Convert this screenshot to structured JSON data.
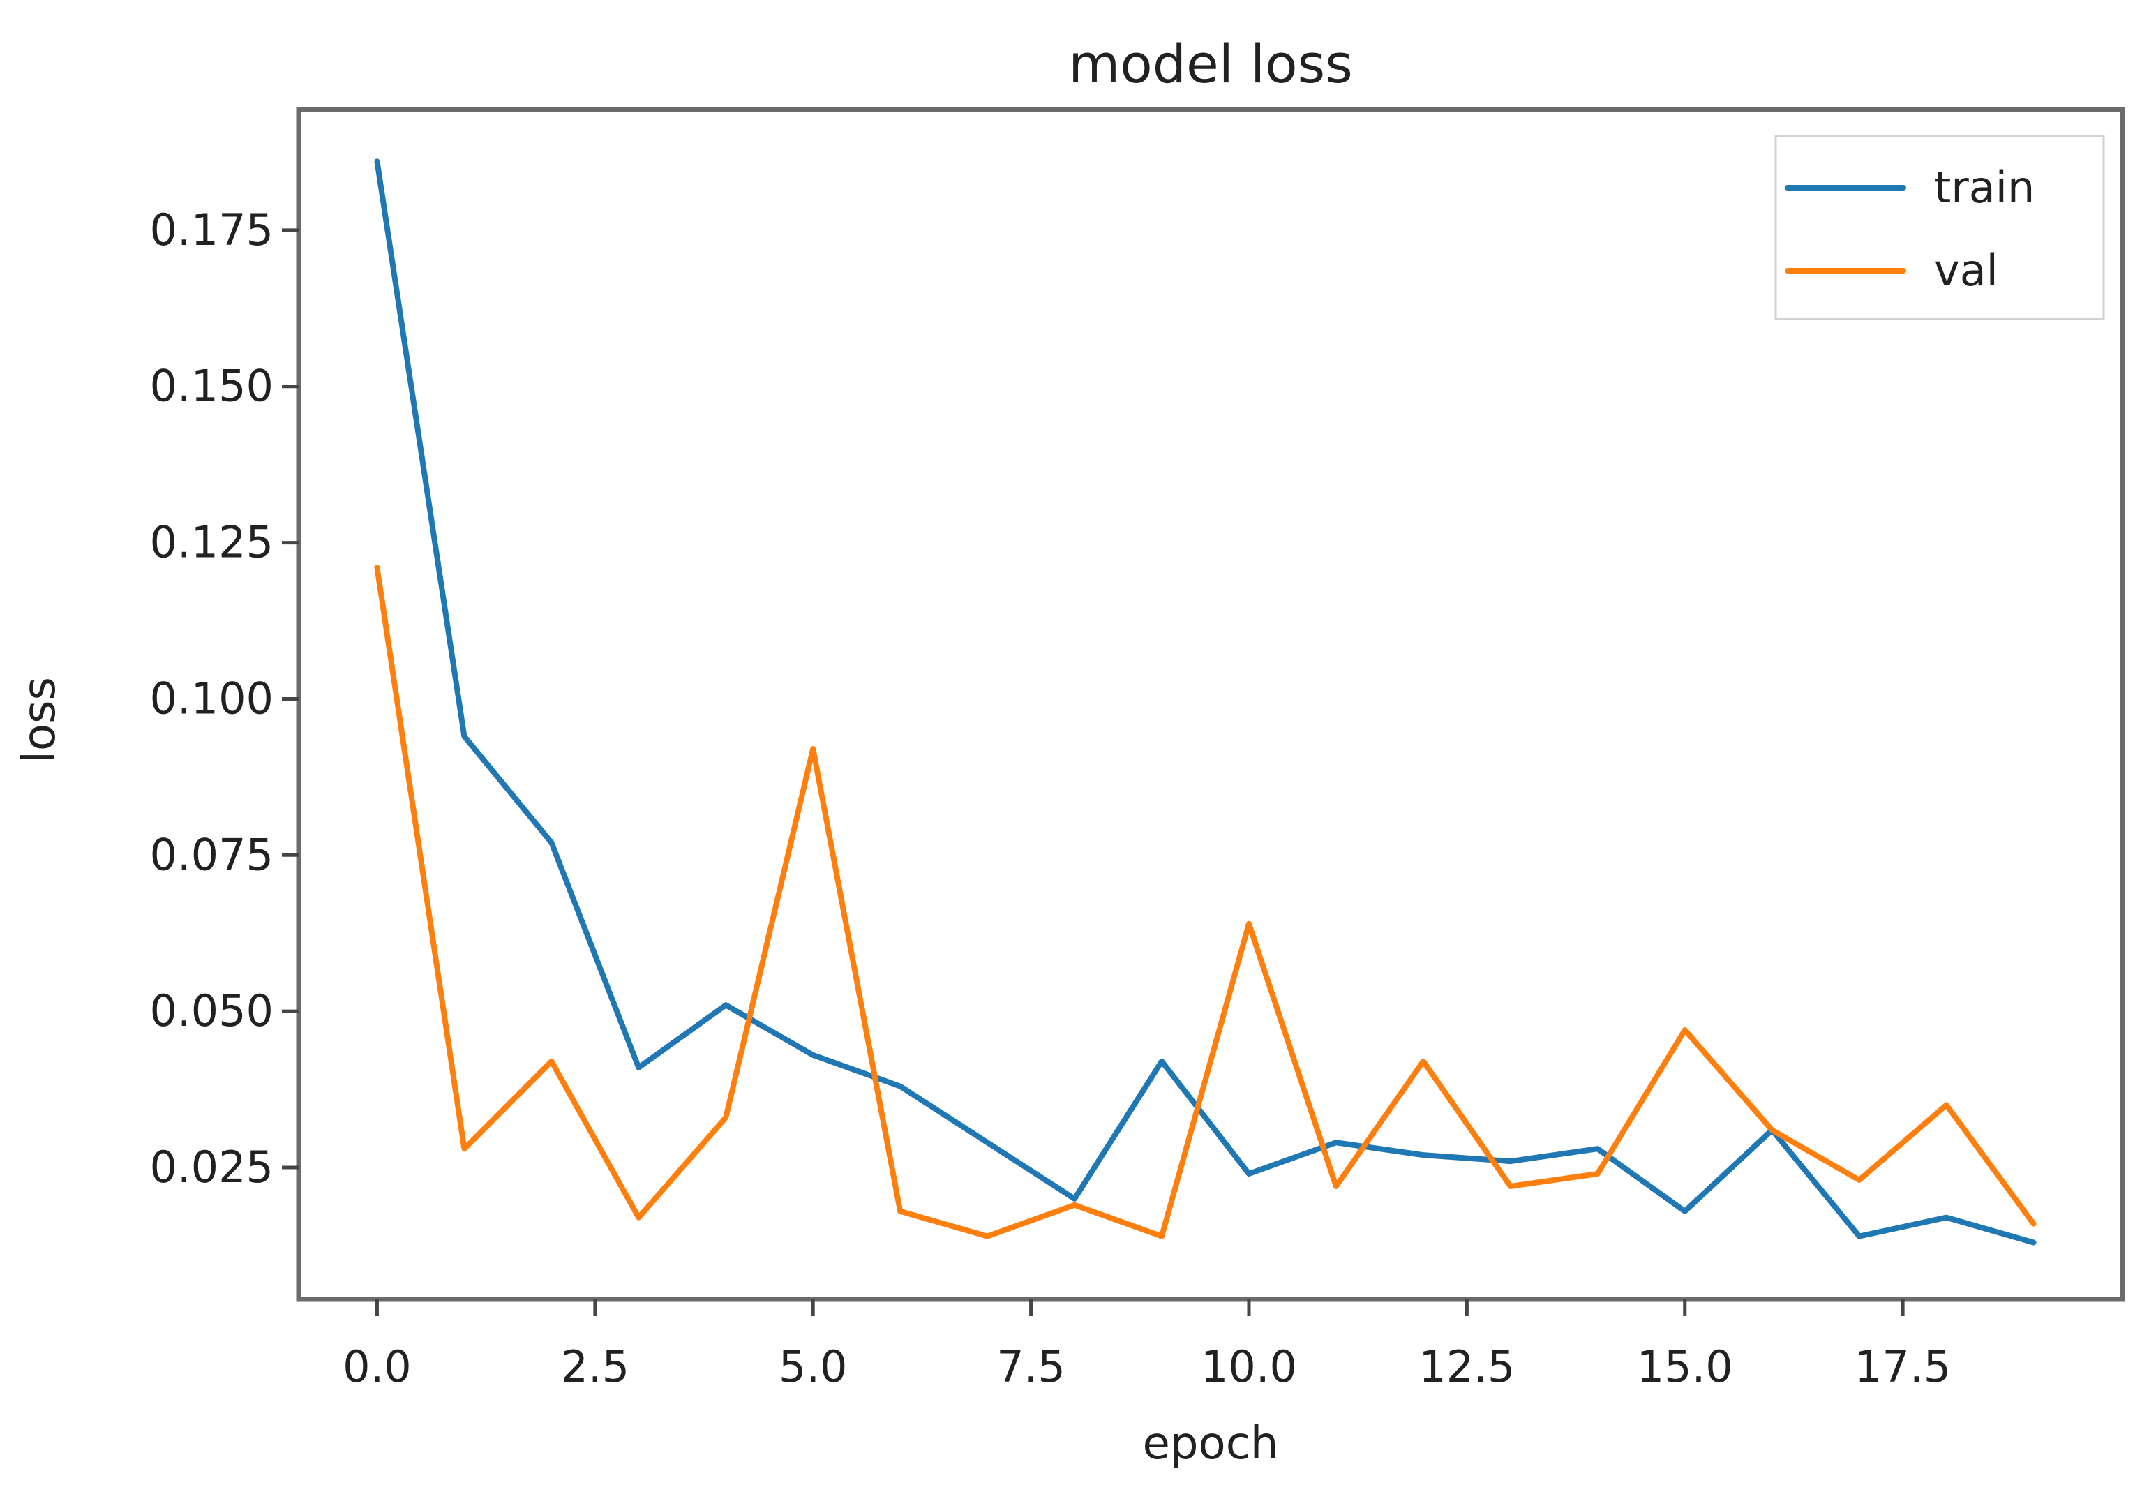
{
  "chart_data": {
    "type": "line",
    "title": "model loss",
    "xlabel": "epoch",
    "ylabel": "loss",
    "x": [
      0,
      1,
      2,
      3,
      4,
      5,
      6,
      7,
      8,
      9,
      10,
      11,
      12,
      13,
      14,
      15,
      16,
      17,
      18,
      19
    ],
    "series": [
      {
        "name": "train",
        "color": "#1f77b4",
        "values": [
          0.186,
          0.094,
          0.077,
          0.041,
          0.051,
          0.043,
          0.038,
          0.029,
          0.02,
          0.042,
          0.024,
          0.029,
          0.027,
          0.026,
          0.028,
          0.018,
          0.031,
          0.014,
          0.017,
          0.013
        ]
      },
      {
        "name": "val",
        "color": "#ff7f0e",
        "values": [
          0.121,
          0.028,
          0.042,
          0.017,
          0.033,
          0.092,
          0.018,
          0.014,
          0.019,
          0.014,
          0.064,
          0.022,
          0.042,
          0.022,
          0.024,
          0.047,
          0.031,
          0.023,
          0.035,
          0.016
        ]
      }
    ],
    "x_tick_values": [
      0.0,
      2.5,
      5.0,
      7.5,
      10.0,
      12.5,
      15.0,
      17.5
    ],
    "x_tick_labels": [
      "0.0",
      "2.5",
      "5.0",
      "7.5",
      "10.0",
      "12.5",
      "15.0",
      "17.5"
    ],
    "y_tick_values": [
      0.025,
      0.05,
      0.075,
      0.1,
      0.125,
      0.15,
      0.175
    ],
    "y_tick_labels": [
      "0.025",
      "0.050",
      "0.075",
      "0.100",
      "0.125",
      "0.150",
      "0.175"
    ],
    "xlim": [
      -0.9,
      20.02
    ],
    "ylim": [
      0.0039,
      0.1943
    ],
    "grid": false,
    "legend": {
      "position": "upper-right",
      "entries": [
        "train",
        "val"
      ]
    },
    "frame_color": "#6b6b6b",
    "tick_color": "#454545",
    "text_color": "#212121",
    "legend_edge_color": "#d2d2d2"
  }
}
